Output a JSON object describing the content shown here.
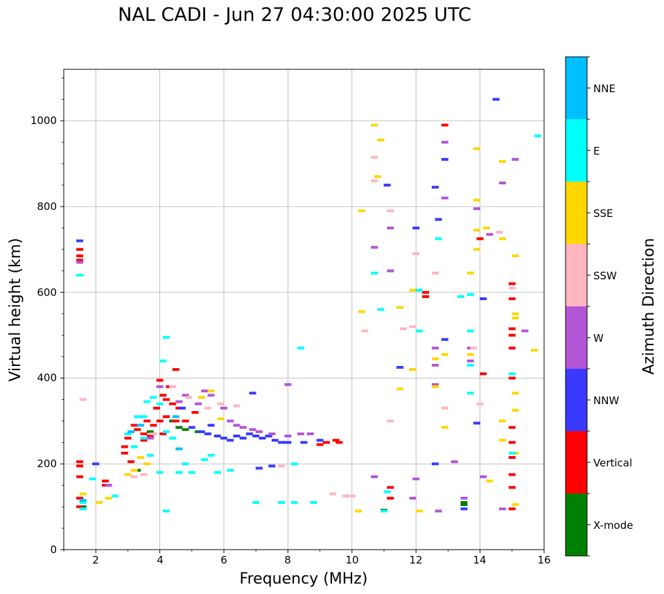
{
  "title": "NAL CADI - Jun 27 04:30:00 2025 UTC",
  "chart_data": {
    "type": "scatter",
    "title": "NAL CADI - Jun 27 04:30:00 2025 UTC",
    "xlabel": "Frequency (MHz)",
    "ylabel": "Virtual height (km)",
    "xlim": [
      1,
      16
    ],
    "ylim": [
      0,
      1120
    ],
    "xticks": [
      2,
      4,
      6,
      8,
      10,
      12,
      14,
      16
    ],
    "yticks": [
      0,
      200,
      400,
      600,
      800,
      1000
    ],
    "grid": true,
    "colorbar": {
      "label": "Azimuth Direction",
      "categories": [
        {
          "name": "X-mode",
          "color": "#008000"
        },
        {
          "name": "Vertical",
          "color": "#ff0000"
        },
        {
          "name": "NNW",
          "color": "#3a3aff"
        },
        {
          "name": "W",
          "color": "#b455d7"
        },
        {
          "name": "SSW",
          "color": "#ffb6c1"
        },
        {
          "name": "SSE",
          "color": "#ffd700"
        },
        {
          "name": "E",
          "color": "#00ffff"
        },
        {
          "name": "NNE",
          "color": "#00bfff"
        }
      ]
    },
    "series": [
      {
        "name": "X-mode",
        "points": [
          [
            1.6,
            100
          ],
          [
            3.3,
            185
          ],
          [
            4.6,
            285
          ],
          [
            4.8,
            280
          ],
          [
            5.2,
            275
          ],
          [
            13.5,
            105
          ],
          [
            13.5,
            110
          ],
          [
            11.0,
            92
          ],
          [
            3.7,
            275
          ],
          [
            4.4,
            300
          ]
        ]
      },
      {
        "name": "Vertical",
        "points": [
          [
            1.5,
            685
          ],
          [
            1.5,
            675
          ],
          [
            1.5,
            700
          ],
          [
            1.5,
            205
          ],
          [
            1.5,
            195
          ],
          [
            1.5,
            170
          ],
          [
            1.5,
            120
          ],
          [
            1.5,
            100
          ],
          [
            2.3,
            160
          ],
          [
            2.3,
            150
          ],
          [
            2.9,
            240
          ],
          [
            2.9,
            225
          ],
          [
            3.0,
            260
          ],
          [
            3.1,
            205
          ],
          [
            3.3,
            280
          ],
          [
            3.5,
            270
          ],
          [
            3.6,
            300
          ],
          [
            3.7,
            265
          ],
          [
            3.8,
            290
          ],
          [
            3.9,
            330
          ],
          [
            4.0,
            300
          ],
          [
            4.0,
            395
          ],
          [
            4.1,
            270
          ],
          [
            4.1,
            360
          ],
          [
            4.2,
            310
          ],
          [
            4.3,
            380
          ],
          [
            4.4,
            340
          ],
          [
            4.5,
            420
          ],
          [
            4.5,
            300
          ],
          [
            4.6,
            330
          ],
          [
            4.8,
            300
          ],
          [
            5.1,
            320
          ],
          [
            9.0,
            245
          ],
          [
            9.2,
            250
          ],
          [
            9.5,
            255
          ],
          [
            9.6,
            250
          ],
          [
            11.2,
            145
          ],
          [
            11.2,
            120
          ],
          [
            12.3,
            600
          ],
          [
            12.3,
            590
          ],
          [
            12.9,
            990
          ],
          [
            14.0,
            725
          ],
          [
            15.0,
            620
          ],
          [
            15.0,
            585
          ],
          [
            15.0,
            500
          ],
          [
            15.0,
            470
          ],
          [
            15.0,
            400
          ],
          [
            15.0,
            285
          ],
          [
            15.0,
            250
          ],
          [
            15.0,
            215
          ],
          [
            15.0,
            175
          ],
          [
            15.0,
            145
          ],
          [
            15.0,
            95
          ],
          [
            15.0,
            515
          ],
          [
            14.1,
            410
          ],
          [
            3.5,
            255
          ],
          [
            4.2,
            350
          ],
          [
            3.2,
            290
          ]
        ]
      },
      {
        "name": "NNW",
        "points": [
          [
            1.5,
            720
          ],
          [
            2.0,
            200
          ],
          [
            5.0,
            285
          ],
          [
            5.3,
            275
          ],
          [
            5.5,
            270
          ],
          [
            5.8,
            265
          ],
          [
            6.0,
            260
          ],
          [
            6.2,
            255
          ],
          [
            6.4,
            265
          ],
          [
            6.6,
            260
          ],
          [
            6.8,
            270
          ],
          [
            7.0,
            265
          ],
          [
            7.2,
            260
          ],
          [
            7.4,
            265
          ],
          [
            7.6,
            255
          ],
          [
            7.8,
            250
          ],
          [
            8.0,
            250
          ],
          [
            8.5,
            250
          ],
          [
            9.0,
            255
          ],
          [
            6.9,
            365
          ],
          [
            7.1,
            190
          ],
          [
            7.5,
            195
          ],
          [
            11.1,
            850
          ],
          [
            11.5,
            425
          ],
          [
            12.0,
            750
          ],
          [
            12.6,
            845
          ],
          [
            12.7,
            770
          ],
          [
            12.9,
            910
          ],
          [
            12.9,
            490
          ],
          [
            13.5,
            95
          ],
          [
            13.9,
            295
          ],
          [
            14.1,
            585
          ],
          [
            14.5,
            1050
          ],
          [
            12.6,
            200
          ],
          [
            4.7,
            330
          ],
          [
            5.6,
            290
          ]
        ]
      },
      {
        "name": "W",
        "points": [
          [
            1.5,
            670
          ],
          [
            2.4,
            150
          ],
          [
            4.0,
            380
          ],
          [
            4.6,
            345
          ],
          [
            4.8,
            360
          ],
          [
            5.2,
            340
          ],
          [
            5.6,
            360
          ],
          [
            6.0,
            330
          ],
          [
            6.2,
            300
          ],
          [
            6.4,
            290
          ],
          [
            6.6,
            285
          ],
          [
            6.9,
            280
          ],
          [
            7.1,
            275
          ],
          [
            7.5,
            270
          ],
          [
            8.0,
            265
          ],
          [
            8.4,
            270
          ],
          [
            8.7,
            270
          ],
          [
            8.0,
            385
          ],
          [
            11.2,
            750
          ],
          [
            11.2,
            650
          ],
          [
            10.7,
            705
          ],
          [
            12.0,
            165
          ],
          [
            12.6,
            470
          ],
          [
            12.6,
            430
          ],
          [
            12.6,
            385
          ],
          [
            12.9,
            950
          ],
          [
            12.9,
            820
          ],
          [
            13.2,
            205
          ],
          [
            13.5,
            120
          ],
          [
            13.7,
            440
          ],
          [
            13.7,
            470
          ],
          [
            13.9,
            795
          ],
          [
            14.3,
            735
          ],
          [
            14.7,
            855
          ],
          [
            15.1,
            910
          ],
          [
            15.4,
            510
          ],
          [
            14.7,
            95
          ],
          [
            14.1,
            170
          ],
          [
            12.7,
            90
          ],
          [
            11.9,
            120
          ],
          [
            10.7,
            170
          ],
          [
            5.4,
            370
          ],
          [
            3.7,
            260
          ]
        ]
      },
      {
        "name": "SSW",
        "points": [
          [
            1.6,
            350
          ],
          [
            3.2,
            170
          ],
          [
            3.5,
            175
          ],
          [
            3.8,
            270
          ],
          [
            4.4,
            380
          ],
          [
            4.9,
            355
          ],
          [
            5.5,
            330
          ],
          [
            5.9,
            340
          ],
          [
            6.4,
            335
          ],
          [
            9.4,
            130
          ],
          [
            9.8,
            125
          ],
          [
            10.4,
            510
          ],
          [
            10.7,
            860
          ],
          [
            10.7,
            915
          ],
          [
            11.2,
            790
          ],
          [
            11.2,
            300
          ],
          [
            11.6,
            515
          ],
          [
            11.9,
            520
          ],
          [
            12.0,
            690
          ],
          [
            12.6,
            645
          ],
          [
            12.9,
            330
          ],
          [
            13.8,
            470
          ],
          [
            14.0,
            340
          ],
          [
            14.6,
            740
          ],
          [
            15.0,
            610
          ],
          [
            10.0,
            125
          ],
          [
            7.8,
            195
          ]
        ]
      },
      {
        "name": "SSE",
        "points": [
          [
            1.6,
            130
          ],
          [
            2.1,
            110
          ],
          [
            2.4,
            120
          ],
          [
            3.2,
            185
          ],
          [
            3.4,
            215
          ],
          [
            3.6,
            200
          ],
          [
            5.3,
            355
          ],
          [
            5.6,
            370
          ],
          [
            5.9,
            305
          ],
          [
            10.3,
            555
          ],
          [
            10.3,
            790
          ],
          [
            10.7,
            990
          ],
          [
            10.8,
            870
          ],
          [
            10.9,
            955
          ],
          [
            11.5,
            565
          ],
          [
            11.5,
            375
          ],
          [
            11.9,
            605
          ],
          [
            11.9,
            420
          ],
          [
            12.1,
            90
          ],
          [
            12.6,
            445
          ],
          [
            12.6,
            380
          ],
          [
            12.9,
            455
          ],
          [
            12.9,
            285
          ],
          [
            13.7,
            645
          ],
          [
            13.7,
            455
          ],
          [
            13.9,
            935
          ],
          [
            13.9,
            815
          ],
          [
            13.9,
            700
          ],
          [
            13.9,
            745
          ],
          [
            14.2,
            750
          ],
          [
            14.3,
            160
          ],
          [
            14.7,
            300
          ],
          [
            14.7,
            255
          ],
          [
            14.7,
            725
          ],
          [
            14.7,
            905
          ],
          [
            15.1,
            685
          ],
          [
            15.1,
            550
          ],
          [
            15.1,
            540
          ],
          [
            15.1,
            365
          ],
          [
            15.1,
            325
          ],
          [
            15.1,
            225
          ],
          [
            15.1,
            105
          ],
          [
            15.7,
            465
          ],
          [
            10.2,
            90
          ],
          [
            3.0,
            175
          ]
        ]
      },
      {
        "name": "E",
        "points": [
          [
            1.5,
            640
          ],
          [
            1.6,
            110
          ],
          [
            1.6,
            95
          ],
          [
            1.9,
            165
          ],
          [
            2.6,
            125
          ],
          [
            3.0,
            270
          ],
          [
            3.2,
            240
          ],
          [
            3.3,
            310
          ],
          [
            3.5,
            310
          ],
          [
            3.6,
            345
          ],
          [
            3.7,
            220
          ],
          [
            3.8,
            355
          ],
          [
            4.0,
            180
          ],
          [
            4.1,
            440
          ],
          [
            4.2,
            495
          ],
          [
            4.2,
            275
          ],
          [
            4.4,
            260
          ],
          [
            4.6,
            180
          ],
          [
            4.8,
            200
          ],
          [
            5.0,
            180
          ],
          [
            5.4,
            210
          ],
          [
            5.6,
            220
          ],
          [
            5.8,
            180
          ],
          [
            6.2,
            185
          ],
          [
            7.0,
            110
          ],
          [
            7.8,
            110
          ],
          [
            8.2,
            110
          ],
          [
            8.4,
            470
          ],
          [
            8.8,
            110
          ],
          [
            8.2,
            200
          ],
          [
            10.7,
            645
          ],
          [
            10.9,
            560
          ],
          [
            11.0,
            90
          ],
          [
            11.1,
            135
          ],
          [
            12.1,
            510
          ],
          [
            12.1,
            605
          ],
          [
            12.7,
            725
          ],
          [
            13.4,
            590
          ],
          [
            13.7,
            510
          ],
          [
            13.7,
            595
          ],
          [
            13.7,
            365
          ],
          [
            13.7,
            430
          ],
          [
            15.0,
            410
          ],
          [
            15.0,
            225
          ],
          [
            15.8,
            965
          ],
          [
            4.2,
            90
          ],
          [
            3.5,
            260
          ],
          [
            4.0,
            340
          ]
        ]
      },
      {
        "name": "NNE",
        "points": [
          [
            1.6,
            115
          ],
          [
            3.1,
            275
          ],
          [
            3.4,
            290
          ],
          [
            4.5,
            310
          ],
          [
            4.6,
            235
          ]
        ]
      }
    ]
  },
  "axis": {
    "xlabel": "Frequency (MHz)",
    "ylabel": "Virtual height (km)",
    "xtick_labels": [
      "2",
      "4",
      "6",
      "8",
      "10",
      "12",
      "14",
      "16"
    ],
    "ytick_labels": [
      "0",
      "200",
      "400",
      "600",
      "800",
      "1000"
    ]
  },
  "colorbar": {
    "label": "Azimuth Direction",
    "labels": [
      "X-mode",
      "Vertical",
      "NNW",
      "W",
      "SSW",
      "SSE",
      "E",
      "NNE"
    ],
    "colors": [
      "#008000",
      "#ff0000",
      "#3a3aff",
      "#b455d7",
      "#ffb6c1",
      "#ffd700",
      "#00ffff",
      "#00bfff"
    ]
  }
}
